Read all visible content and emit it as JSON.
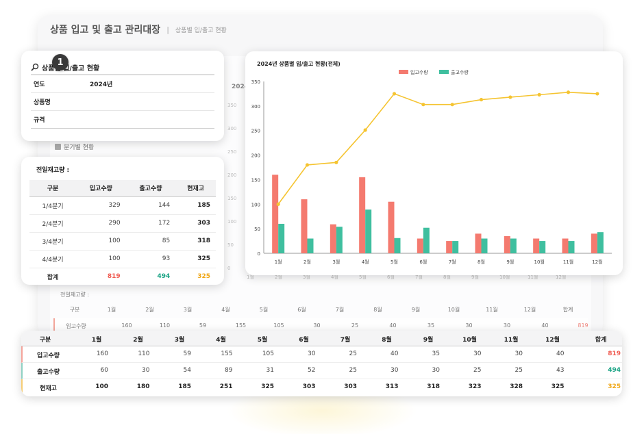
{
  "app": {
    "title": "상품 입고 및 출고 관리대장",
    "subtitle": "상품별 입/출고 현황",
    "separator": "|"
  },
  "background": {
    "quarter_section_label": "분기별 현황",
    "year_label": "2024",
    "stock_label": "전일재고량 :",
    "y_ticks": [
      "350",
      "300",
      "250",
      "200",
      "150",
      "100",
      "50",
      "0"
    ],
    "x_ticks": [
      "1월",
      "2월",
      "3월",
      "4월",
      "5월",
      "6월",
      "7월",
      "8월",
      "9월",
      "10월",
      "11월",
      "12월"
    ],
    "table_head": [
      "구분",
      "1월",
      "2월",
      "3월",
      "4월",
      "5월",
      "6월",
      "7월",
      "8월",
      "9월",
      "10월",
      "11월",
      "12월",
      "합계"
    ],
    "table_in": [
      "입고수량",
      "160",
      "110",
      "59",
      "155",
      "105",
      "30",
      "25",
      "40",
      "35",
      "30",
      "30",
      "40",
      "819"
    ]
  },
  "search": {
    "badge": "1",
    "title": "상품별 입/출고 현황",
    "icon": "search-icon",
    "fields": [
      {
        "label": "연도",
        "value": "2024년"
      },
      {
        "label": "상품명",
        "value": ""
      },
      {
        "label": "규격",
        "value": ""
      }
    ]
  },
  "quarterly": {
    "title": "전일재고량 :",
    "headers": [
      "구분",
      "입고수량",
      "출고수량",
      "현재고"
    ],
    "rows": [
      [
        "1/4분기",
        "329",
        "144",
        "185"
      ],
      [
        "2/4분기",
        "290",
        "172",
        "303"
      ],
      [
        "3/4분기",
        "100",
        "85",
        "318"
      ],
      [
        "4/4분기",
        "100",
        "93",
        "325"
      ]
    ],
    "total": [
      "합계",
      "819",
      "494",
      "325"
    ]
  },
  "chart_data": {
    "type": "bar",
    "title": "2024년 상품별 입/출고 현황(전체)",
    "categories": [
      "1월",
      "2월",
      "3월",
      "4월",
      "5월",
      "6월",
      "7월",
      "8월",
      "9월",
      "10월",
      "11월",
      "12월"
    ],
    "series": [
      {
        "name": "입고수량",
        "kind": "bar",
        "color": "#f47a6f",
        "values": [
          160,
          110,
          59,
          155,
          105,
          30,
          25,
          40,
          35,
          30,
          30,
          40
        ]
      },
      {
        "name": "출고수량",
        "kind": "bar",
        "color": "#3fbf9f",
        "values": [
          60,
          30,
          54,
          89,
          31,
          52,
          25,
          30,
          30,
          25,
          25,
          43
        ]
      },
      {
        "name": "",
        "kind": "line",
        "color": "#f5c431",
        "values": [
          100,
          180,
          185,
          251,
          325,
          303,
          303,
          313,
          318,
          323,
          328,
          325
        ]
      }
    ],
    "ylim": [
      0,
      350
    ],
    "y_ticks": [
      "0",
      "50",
      "100",
      "150",
      "200",
      "250",
      "300",
      "350"
    ],
    "legend_position": "top-center",
    "grid": false
  },
  "monthly": {
    "headers": [
      "구분",
      "1월",
      "2월",
      "3월",
      "4월",
      "5월",
      "6월",
      "7월",
      "8월",
      "9월",
      "10월",
      "11월",
      "12월",
      "합계"
    ],
    "rows": [
      {
        "label": "입고수량",
        "values": [
          "160",
          "110",
          "59",
          "155",
          "105",
          "30",
          "25",
          "40",
          "35",
          "30",
          "30",
          "40"
        ],
        "total": "819",
        "total_color": "#f05c52"
      },
      {
        "label": "출고수량",
        "values": [
          "60",
          "30",
          "54",
          "89",
          "31",
          "52",
          "25",
          "30",
          "30",
          "25",
          "25",
          "43"
        ],
        "total": "494",
        "total_color": "#19a384"
      },
      {
        "label": "현재고",
        "values": [
          "100",
          "180",
          "185",
          "251",
          "325",
          "303",
          "303",
          "313",
          "318",
          "323",
          "328",
          "325"
        ],
        "total": "325",
        "total_color": "#f0a717"
      }
    ]
  }
}
